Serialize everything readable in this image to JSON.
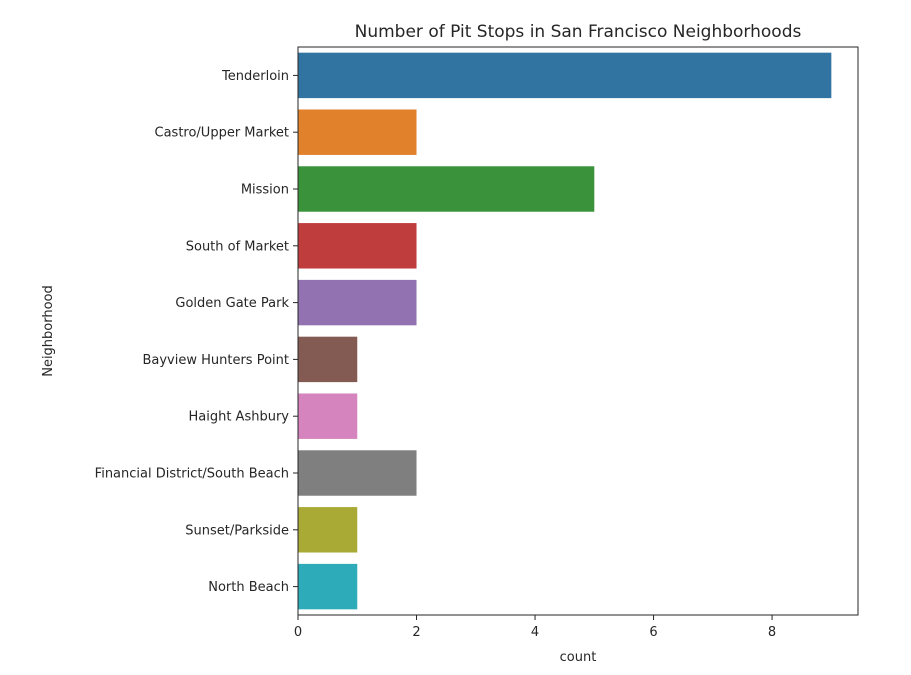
{
  "chart_data": {
    "type": "bar",
    "orientation": "horizontal",
    "title": "Number of Pit Stops in San Francisco Neighborhoods",
    "xlabel": "count",
    "ylabel": "Neighborhood",
    "xlim": [
      0,
      9.45
    ],
    "x_ticks": [
      0,
      2,
      4,
      6,
      8
    ],
    "grid": false,
    "categories": [
      "Tenderloin",
      "Castro/Upper Market",
      "Mission",
      "South of Market",
      "Golden Gate Park",
      "Bayview Hunters Point",
      "Haight Ashbury",
      "Financial District/South Beach",
      "Sunset/Parkside",
      "North Beach"
    ],
    "values": [
      9,
      2,
      5,
      2,
      2,
      1,
      1,
      2,
      1,
      1
    ],
    "colors": [
      "#3274a1",
      "#e1812c",
      "#3a923a",
      "#c03d3e",
      "#9372b2",
      "#845b53",
      "#d684bd",
      "#7f7f7f",
      "#a9aa35",
      "#2eabb8"
    ]
  }
}
